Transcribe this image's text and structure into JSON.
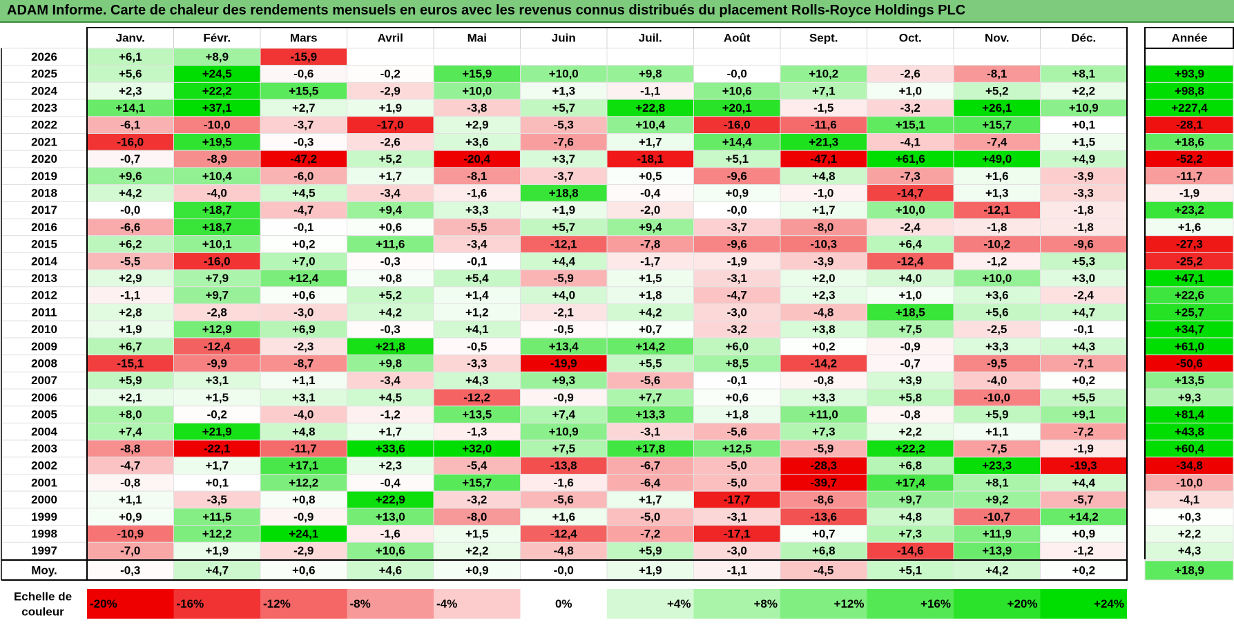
{
  "title": "ADAM Informe. Carte de chaleur des rendements mensuels en euros avec les revenus connus distribués du placement Rolls-Royce Holdings PLC",
  "colors": {
    "positive_max": "#00dd00",
    "negative_max": "#ee0000",
    "neutral": "#ffffff",
    "title_bg": "#7ecb7e"
  },
  "chart_data": {
    "type": "heatmap",
    "title": "ADAM Informe. Carte de chaleur des rendements mensuels en euros avec les revenus connus distribués du placement Rolls-Royce Holdings PLC",
    "months": [
      "Janv.",
      "Févr.",
      "Mars",
      "Avril",
      "Mai",
      "Juin",
      "Juil.",
      "Août",
      "Sept.",
      "Oct.",
      "Nov.",
      "Déc."
    ],
    "year_label": "Année",
    "years": [
      "2026",
      "2025",
      "2024",
      "2023",
      "2022",
      "2021",
      "2020",
      "2019",
      "2018",
      "2017",
      "2016",
      "2015",
      "2014",
      "2013",
      "2012",
      "2011",
      "2010",
      "2009",
      "2008",
      "2007",
      "2006",
      "2005",
      "2004",
      "2003",
      "2002",
      "2001",
      "2000",
      "1999",
      "1998",
      "1997"
    ],
    "values": [
      [
        "+6,1",
        "+8,9",
        "-15,9",
        "",
        "",
        "",
        "",
        "",
        "",
        "",
        "",
        ""
      ],
      [
        "+5,6",
        "+24,5",
        "-0,6",
        "-0,2",
        "+15,9",
        "+10,0",
        "+9,8",
        "-0,0",
        "+10,2",
        "-2,6",
        "-8,1",
        "+8,1"
      ],
      [
        "+2,3",
        "+22,2",
        "+15,5",
        "-2,9",
        "+10,0",
        "+1,3",
        "-1,1",
        "+10,6",
        "+7,1",
        "+1,0",
        "+5,2",
        "+2,2"
      ],
      [
        "+14,1",
        "+37,1",
        "+2,7",
        "+1,9",
        "-3,8",
        "+5,7",
        "+22,8",
        "+20,1",
        "-1,5",
        "-3,2",
        "+26,1",
        "+10,9"
      ],
      [
        "-6,1",
        "-10,0",
        "-3,7",
        "-17,0",
        "+2,9",
        "-5,3",
        "+10,4",
        "-16,0",
        "-11,6",
        "+15,1",
        "+15,7",
        "+0,1"
      ],
      [
        "-16,0",
        "+19,5",
        "-0,3",
        "-2,6",
        "+3,6",
        "-7,6",
        "+1,7",
        "+14,4",
        "+21,3",
        "-4,1",
        "-7,4",
        "+1,5"
      ],
      [
        "-0,7",
        "-8,9",
        "-47,2",
        "+5,2",
        "-20,4",
        "+3,7",
        "-18,1",
        "+5,1",
        "-47,1",
        "+61,6",
        "+49,0",
        "+4,9"
      ],
      [
        "+9,6",
        "+10,4",
        "-6,0",
        "+1,7",
        "-8,1",
        "-3,7",
        "+0,5",
        "-9,6",
        "+4,8",
        "-7,3",
        "+1,6",
        "-3,9"
      ],
      [
        "+4,2",
        "-4,0",
        "+4,5",
        "-3,4",
        "-1,6",
        "+18,8",
        "-0,4",
        "+0,9",
        "-1,0",
        "-14,7",
        "+1,3",
        "-3,3"
      ],
      [
        "-0,0",
        "+18,7",
        "-4,7",
        "+9,4",
        "+3,3",
        "+1,9",
        "-2,0",
        "-0,0",
        "+1,7",
        "+10,0",
        "-12,1",
        "-1,8"
      ],
      [
        "-6,6",
        "+18,7",
        "-0,1",
        "+0,6",
        "-5,5",
        "+5,7",
        "+9,4",
        "-3,7",
        "-8,0",
        "-2,4",
        "-1,8",
        "-1,8"
      ],
      [
        "+6,2",
        "+10,1",
        "+0,2",
        "+11,6",
        "-3,4",
        "-12,1",
        "-7,8",
        "-9,6",
        "-10,3",
        "+6,4",
        "-10,2",
        "-9,6"
      ],
      [
        "-5,5",
        "-16,0",
        "+7,0",
        "-0,3",
        "-0,1",
        "+4,4",
        "-1,7",
        "-1,9",
        "-3,9",
        "-12,4",
        "-1,2",
        "+5,3"
      ],
      [
        "+2,9",
        "+7,9",
        "+12,4",
        "+0,8",
        "+5,4",
        "-5,9",
        "+1,5",
        "-3,1",
        "+2,0",
        "+4,0",
        "+10,0",
        "+3,0"
      ],
      [
        "-1,1",
        "+9,7",
        "+0,6",
        "+5,2",
        "+1,4",
        "+4,0",
        "+1,8",
        "-4,7",
        "+2,3",
        "+1,0",
        "+3,6",
        "-2,4"
      ],
      [
        "+2,8",
        "-2,8",
        "-3,0",
        "+4,2",
        "+1,2",
        "-2,1",
        "+4,2",
        "-3,0",
        "-4,8",
        "+18,5",
        "+5,6",
        "+4,7"
      ],
      [
        "+1,9",
        "+12,9",
        "+6,9",
        "-0,3",
        "+4,1",
        "-0,5",
        "+0,7",
        "-3,2",
        "+3,8",
        "+7,5",
        "-2,5",
        "-0,1"
      ],
      [
        "+6,7",
        "-12,4",
        "-2,3",
        "+21,8",
        "-0,5",
        "+13,4",
        "+14,2",
        "+6,0",
        "+0,2",
        "-0,9",
        "+3,3",
        "+4,3"
      ],
      [
        "-15,1",
        "-9,9",
        "-8,7",
        "+9,8",
        "-3,3",
        "-19,9",
        "+5,5",
        "+8,5",
        "-14,2",
        "-0,7",
        "-9,5",
        "-7,1"
      ],
      [
        "+5,9",
        "+3,1",
        "+1,1",
        "-3,4",
        "+4,3",
        "+9,3",
        "-5,6",
        "-0,1",
        "-0,8",
        "+3,9",
        "-4,0",
        "+0,2"
      ],
      [
        "+2,1",
        "+1,5",
        "+3,1",
        "+4,5",
        "-12,2",
        "-0,9",
        "+7,7",
        "+0,6",
        "+3,3",
        "+5,8",
        "-10,0",
        "+5,5"
      ],
      [
        "+8,0",
        "-0,2",
        "-4,0",
        "-1,2",
        "+13,5",
        "+7,4",
        "+13,3",
        "+1,8",
        "+11,0",
        "-0,8",
        "+5,9",
        "+9,1"
      ],
      [
        "+7,4",
        "+21,9",
        "+4,8",
        "+1,7",
        "-1,3",
        "+10,9",
        "-3,1",
        "-5,6",
        "+7,3",
        "+2,2",
        "+1,1",
        "-7,2"
      ],
      [
        "-8,8",
        "-22,1",
        "-11,7",
        "+33,6",
        "+32,0",
        "+7,5",
        "+17,8",
        "+12,5",
        "-5,9",
        "+22,2",
        "-7,5",
        "-1,9"
      ],
      [
        "-4,7",
        "+1,7",
        "+17,1",
        "+2,3",
        "-5,4",
        "-13,8",
        "-6,7",
        "-5,0",
        "-28,3",
        "+6,8",
        "+23,3",
        "-19,3"
      ],
      [
        "-0,8",
        "+0,1",
        "+12,2",
        "-0,4",
        "+15,7",
        "-1,6",
        "-6,4",
        "-5,0",
        "-39,7",
        "+17,4",
        "+8,1",
        "+4,4"
      ],
      [
        "+1,1",
        "-3,5",
        "+0,8",
        "+22,9",
        "-3,2",
        "-5,6",
        "+1,7",
        "-17,7",
        "-8,6",
        "+9,7",
        "+9,2",
        "-5,7"
      ],
      [
        "+0,9",
        "+11,5",
        "-0,9",
        "+13,0",
        "-8,0",
        "+1,6",
        "-5,0",
        "-3,1",
        "-13,6",
        "+4,8",
        "-10,7",
        "+14,2"
      ],
      [
        "-10,9",
        "+12,2",
        "+24,1",
        "-1,6",
        "+1,5",
        "-12,4",
        "-7,2",
        "-17,1",
        "+0,7",
        "+7,3",
        "+11,9",
        "+0,9"
      ],
      [
        "-7,0",
        "+1,9",
        "-2,9",
        "+10,6",
        "+2,2",
        "-4,8",
        "+5,9",
        "-3,0",
        "+6,8",
        "-14,6",
        "+13,9",
        "-1,2"
      ]
    ],
    "annual": [
      "",
      "+93,9",
      "+98,8",
      "+227,4",
      "-28,1",
      "+18,6",
      "-52,2",
      "-11,7",
      "-1,9",
      "+23,2",
      "+1,6",
      "-27,3",
      "-25,2",
      "+47,1",
      "+22,6",
      "+25,7",
      "+34,7",
      "+61,0",
      "-50,6",
      "+13,5",
      "+9,3",
      "+81,4",
      "+43,8",
      "+60,4",
      "-34,8",
      "-10,0",
      "-4,1",
      "+0,3",
      "+2,2",
      "+4,3"
    ],
    "average_label": "Moy.",
    "averages": [
      "-0,3",
      "+4,7",
      "+0,6",
      "+4,6",
      "+0,9",
      "-0,0",
      "+1,9",
      "-1,1",
      "-4,5",
      "+5,1",
      "+4,2",
      "+0,2"
    ],
    "average_annual": "+18,9",
    "scale_label": [
      "Echelle de",
      "couleur"
    ],
    "scale_steps": [
      "-20%",
      "-16%",
      "-12%",
      "-8%",
      "-4%",
      "0%",
      "+4%",
      "+8%",
      "+12%",
      "+16%",
      "+20%",
      "+24%"
    ],
    "scale_values": [
      -20,
      -16,
      -12,
      -8,
      -4,
      0,
      4,
      8,
      12,
      16,
      20,
      24
    ],
    "color_range": [
      -20,
      24
    ]
  }
}
